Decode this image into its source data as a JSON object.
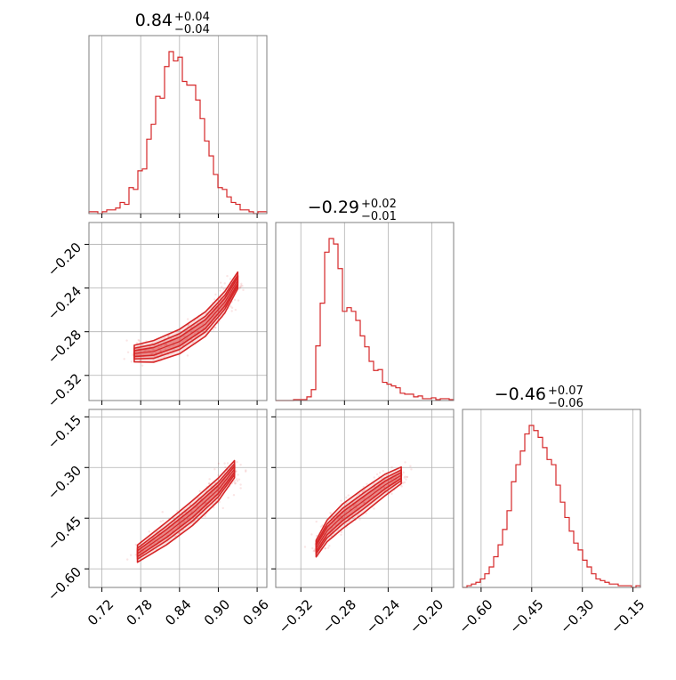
{
  "chart_data": {
    "type": "corner",
    "color": "#d62728",
    "grid": true,
    "params": [
      {
        "title_main": "0.84",
        "title_plus": "+0.04",
        "title_minus": "−0.04",
        "range": [
          0.7,
          0.975
        ],
        "ticks": [
          0.72,
          0.78,
          0.84,
          0.9,
          0.96
        ],
        "tick_labels": [
          "0.72",
          "0.78",
          "0.84",
          "0.90",
          "0.96"
        ]
      },
      {
        "title_main": "−0.29",
        "title_plus": "+0.02",
        "title_minus": "−0.01",
        "range": [
          -0.343,
          -0.18
        ],
        "ticks": [
          -0.32,
          -0.28,
          -0.24,
          -0.2
        ],
        "tick_labels": [
          "−0.32",
          "−0.28",
          "−0.24",
          "−0.20"
        ]
      },
      {
        "title_main": "−0.46",
        "title_plus": "+0.07",
        "title_minus": "−0.06",
        "range": [
          -0.655,
          -0.128
        ],
        "ticks": [
          -0.6,
          -0.45,
          -0.3,
          -0.15
        ],
        "tick_labels": [
          "−0.60",
          "−0.45",
          "−0.30",
          "−0.15"
        ]
      }
    ],
    "histograms": [
      {
        "param": 0,
        "bins": [
          0.7,
          0.975
        ],
        "values": [
          1,
          1,
          0,
          1,
          2,
          2,
          3,
          6,
          5,
          14,
          13,
          23,
          24,
          40,
          48,
          63,
          62,
          79,
          87,
          82,
          84,
          71,
          69,
          69,
          61,
          51,
          39,
          31,
          21,
          14,
          13,
          9,
          6,
          5,
          2,
          2,
          1,
          0,
          1,
          1
        ]
      },
      {
        "param": 1,
        "bins": [
          -0.343,
          -0.18
        ],
        "values": [
          0,
          0,
          0,
          0,
          1,
          1,
          1,
          4,
          12,
          60,
          107,
          163,
          178,
          172,
          145,
          98,
          102,
          98,
          88,
          71,
          59,
          43,
          33,
          34,
          20,
          18,
          16,
          14,
          8,
          7,
          7,
          4,
          5,
          2,
          2,
          3,
          1,
          2,
          2,
          1
        ]
      },
      {
        "param": 2,
        "bins": [
          -0.655,
          -0.128
        ],
        "values": [
          0,
          1,
          2,
          3,
          5,
          8,
          12,
          18,
          25,
          34,
          45,
          62,
          72,
          80,
          90,
          95,
          92,
          88,
          82,
          75,
          72,
          60,
          50,
          41,
          33,
          26,
          22,
          16,
          12,
          8,
          5,
          4,
          3,
          2,
          2,
          1,
          1,
          1,
          0,
          1
        ]
      }
    ],
    "pairs": [
      {
        "x_param": 0,
        "y_param": 1,
        "ridge": [
          [
            0.77,
            -0.3
          ],
          [
            0.8,
            -0.298
          ],
          [
            0.84,
            -0.289
          ],
          [
            0.88,
            -0.273
          ],
          [
            0.91,
            -0.253
          ],
          [
            0.93,
            -0.233
          ]
        ],
        "scatter_extent": [
          [
            0.76,
            -0.32
          ],
          [
            0.975,
            -0.182
          ]
        ]
      },
      {
        "x_param": 0,
        "y_param": 2,
        "ridge": [
          [
            0.775,
            -0.555
          ],
          [
            0.82,
            -0.495
          ],
          [
            0.86,
            -0.435
          ],
          [
            0.9,
            -0.365
          ],
          [
            0.925,
            -0.305
          ]
        ],
        "scatter_extent": [
          [
            0.74,
            -0.62
          ],
          [
            0.975,
            -0.15
          ]
        ]
      },
      {
        "x_param": 1,
        "y_param": 2,
        "ridge": [
          [
            -0.306,
            -0.54
          ],
          [
            -0.296,
            -0.488
          ],
          [
            -0.282,
            -0.445
          ],
          [
            -0.263,
            -0.4
          ],
          [
            -0.243,
            -0.352
          ],
          [
            -0.228,
            -0.323
          ]
        ],
        "scatter_extent": [
          [
            -0.32,
            -0.58
          ],
          [
            -0.2,
            -0.28
          ]
        ]
      }
    ]
  }
}
